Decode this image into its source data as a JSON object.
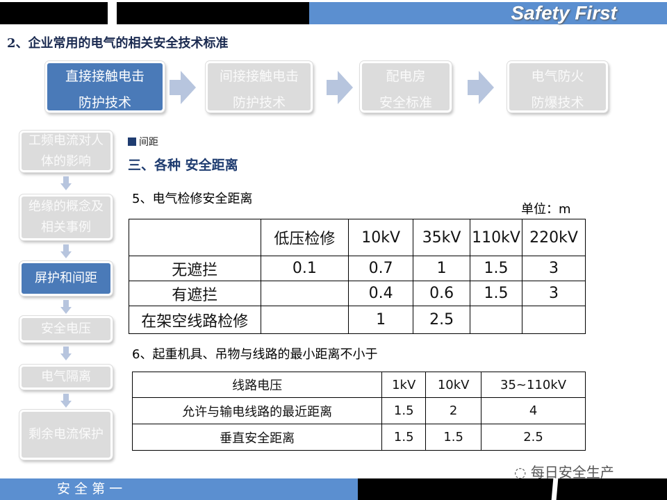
{
  "header": {
    "banner": "Safety First",
    "section_title": "2、企业常用的电气的相关安全技术标准"
  },
  "process": [
    {
      "line1": "直接接触电击",
      "line2": "防护技术",
      "active": true
    },
    {
      "line1": "间接接触电击",
      "line2": "防护技术",
      "active": false
    },
    {
      "line1": "配电房",
      "line2": "安全标准",
      "active": false
    },
    {
      "line1": "电气防火",
      "line2": "防爆技术",
      "active": false
    }
  ],
  "sidebar": [
    {
      "label": "工频电流对人体的影响",
      "active": false
    },
    {
      "label": "绝缘的概念及相关事例",
      "active": false
    },
    {
      "label": "屏护和间距",
      "active": true
    },
    {
      "label": "安全电压",
      "active": false
    },
    {
      "label": "电气隔离",
      "active": false
    },
    {
      "label": "剩余电流保护",
      "active": false
    }
  ],
  "content": {
    "bullet": "间距",
    "heading": "三、各种 安全距离",
    "sub5": "5、电气检修安全距离",
    "unit": "单位：m",
    "table1": {
      "headers": [
        "",
        "低压检修",
        "10kV",
        "35kV",
        "110kV",
        "220kV"
      ],
      "rows": [
        [
          "无遮拦",
          "0.1",
          "0.7",
          "1",
          "1.5",
          "3"
        ],
        [
          "有遮拦",
          "",
          "0.4",
          "0.6",
          "1.5",
          "3"
        ],
        [
          "在架空线路检修",
          "",
          "1",
          "2.5",
          "",
          ""
        ]
      ]
    },
    "sub6": "6、起重机具、吊物与线路的最小距离不小于",
    "table2": {
      "headers": [
        "线路电压",
        "1kV",
        "10kV",
        "35~110kV"
      ],
      "rows": [
        [
          "允许与输电线路的最近距离",
          "1.5",
          "2",
          "4"
        ],
        [
          "垂直安全距离",
          "1.5",
          "1.5",
          "2.5"
        ]
      ]
    }
  },
  "footer": {
    "left": "安 全 第 一",
    "watermark": "每日安全生产"
  },
  "colors": {
    "accent": "#5b8fd0",
    "active_box": "#4a7ab8",
    "inactive_box": "#dcdcdc"
  }
}
